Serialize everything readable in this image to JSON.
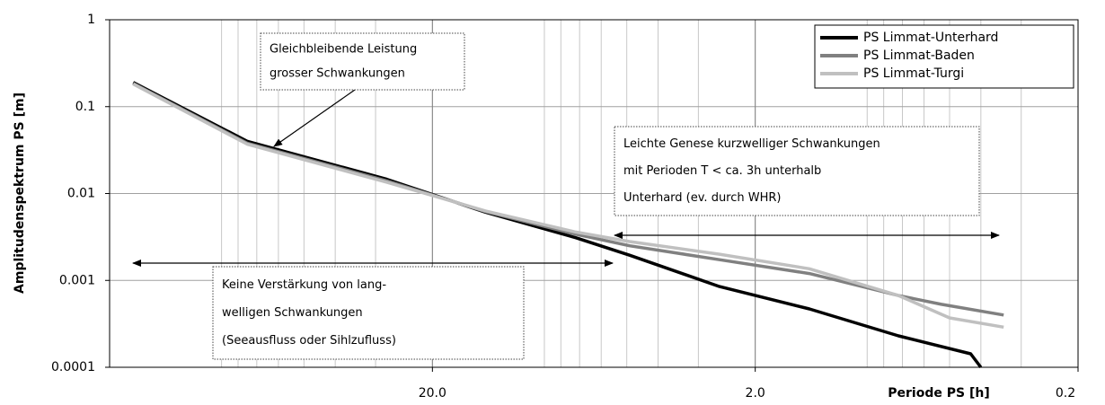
{
  "chart_data": {
    "type": "line",
    "y_label": "Amplitudenspektrum PS [m]",
    "x_label": "Periode PS [h]",
    "xscale": "log",
    "yscale": "log",
    "x_reversed": true,
    "grid": true,
    "legend": "top-right",
    "xlim": [
      200,
      0.2
    ],
    "xticks": [
      {
        "value": 20,
        "label": "20.0"
      },
      {
        "value": 2,
        "label": "2.0"
      },
      0.2
    ],
    "ylim": [
      0.0001,
      1
    ],
    "yticks": [
      0.0001,
      0.001,
      0.01,
      0.1,
      1
    ],
    "series": [
      {
        "name": "PS Limmat-Unterhard",
        "color": "#000000",
        "x": [
          169,
          75,
          27.7,
          13.7,
          7.2,
          4.9,
          2.58,
          1.36,
          0.72,
          0.43,
          0.4
        ],
        "values": [
          0.19,
          0.04,
          0.0146,
          0.0061,
          0.0031,
          0.00195,
          0.00085,
          0.00047,
          0.00023,
          0.000143,
          0.0001
        ]
      },
      {
        "name": "PS Limmat-Baden",
        "color": "#808080",
        "x": [
          169,
          75,
          27.7,
          13.7,
          7.2,
          4.9,
          2.58,
          1.36,
          0.72,
          0.53,
          0.34
        ],
        "values": [
          0.185,
          0.038,
          0.014,
          0.0062,
          0.0034,
          0.0025,
          0.00173,
          0.0012,
          0.00067,
          0.00053,
          0.0004
        ]
      },
      {
        "name": "PS Limmat-Turgi",
        "color": "#c0c0c0",
        "x": [
          169,
          75,
          27.7,
          13.7,
          7.2,
          4.9,
          2.58,
          1.36,
          0.72,
          0.5,
          0.34
        ],
        "values": [
          0.182,
          0.037,
          0.0135,
          0.0063,
          0.0036,
          0.0028,
          0.002,
          0.00136,
          0.00067,
          0.00037,
          0.00029
        ]
      }
    ],
    "annotations": [
      {
        "lines": [
          "Gleichbleibende Leistung",
          "grosser Schwankungen"
        ]
      },
      {
        "lines": [
          "Leichte Genese kurzwelliger Schwankungen",
          "mit Perioden T < ca. 3h unterhalb",
          "Unterhard (ev. durch WHR)"
        ]
      },
      {
        "lines": [
          "Keine Verstärkung von lang-",
          "welligen Schwankungen",
          "(Seeausfluss oder Sihlzufluss)"
        ]
      }
    ]
  }
}
